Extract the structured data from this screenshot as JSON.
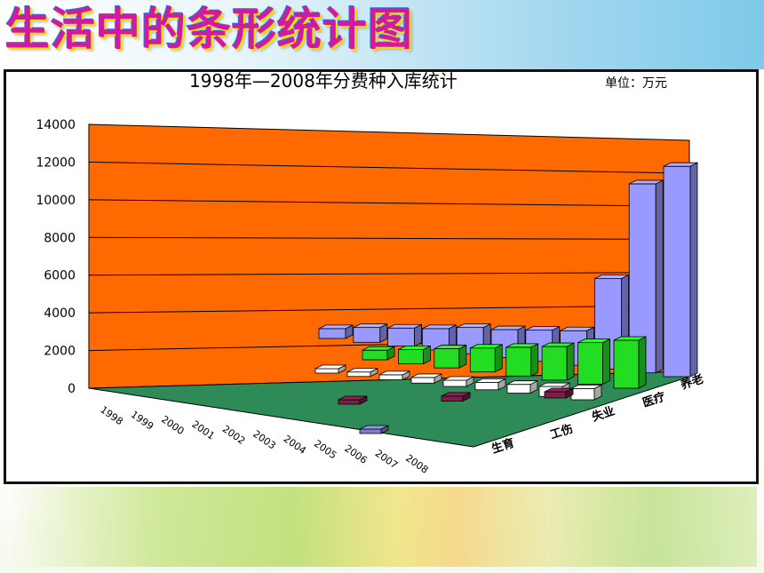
{
  "page": {
    "title": "生活中的条形统计图"
  },
  "chart_data": {
    "type": "bar",
    "subtype": "3d-column",
    "title": "1998年—2008年分费种入库统计",
    "unit_label": "单位：万元",
    "categories": [
      "1998",
      "1999",
      "2000",
      "2001",
      "2002",
      "2003",
      "2004",
      "2005",
      "2006",
      "2007",
      "2008"
    ],
    "ylim": [
      0,
      14000
    ],
    "yticks": [
      0,
      2000,
      4000,
      6000,
      8000,
      10000,
      12000,
      14000
    ],
    "grid": true,
    "colors": {
      "back_wall": "#ff6a00",
      "floor": "#2e8b57",
      "series": [
        "#8080c8",
        "#7b1f4a",
        "#ffffff",
        "#22dd22",
        "#9999ff"
      ]
    },
    "series": [
      {
        "name": "生育",
        "values": [
          null,
          null,
          null,
          null,
          null,
          null,
          null,
          null,
          null,
          null,
          300
        ]
      },
      {
        "name": "工伤",
        "values": [
          null,
          null,
          null,
          null,
          null,
          null,
          null,
          null,
          300,
          400,
          500
        ]
      },
      {
        "name": "失业",
        "values": [
          null,
          null,
          250,
          300,
          400,
          450,
          500,
          600,
          700,
          800,
          900
        ]
      },
      {
        "name": "医疗",
        "values": [
          null,
          null,
          null,
          600,
          900,
          1200,
          1500,
          1800,
          2100,
          2600,
          3000
        ]
      },
      {
        "name": "养老",
        "values": [
          600,
          900,
          1100,
          1300,
          1600,
          1700,
          1900,
          2100,
          5500,
          11500,
          12800
        ]
      }
    ]
  }
}
